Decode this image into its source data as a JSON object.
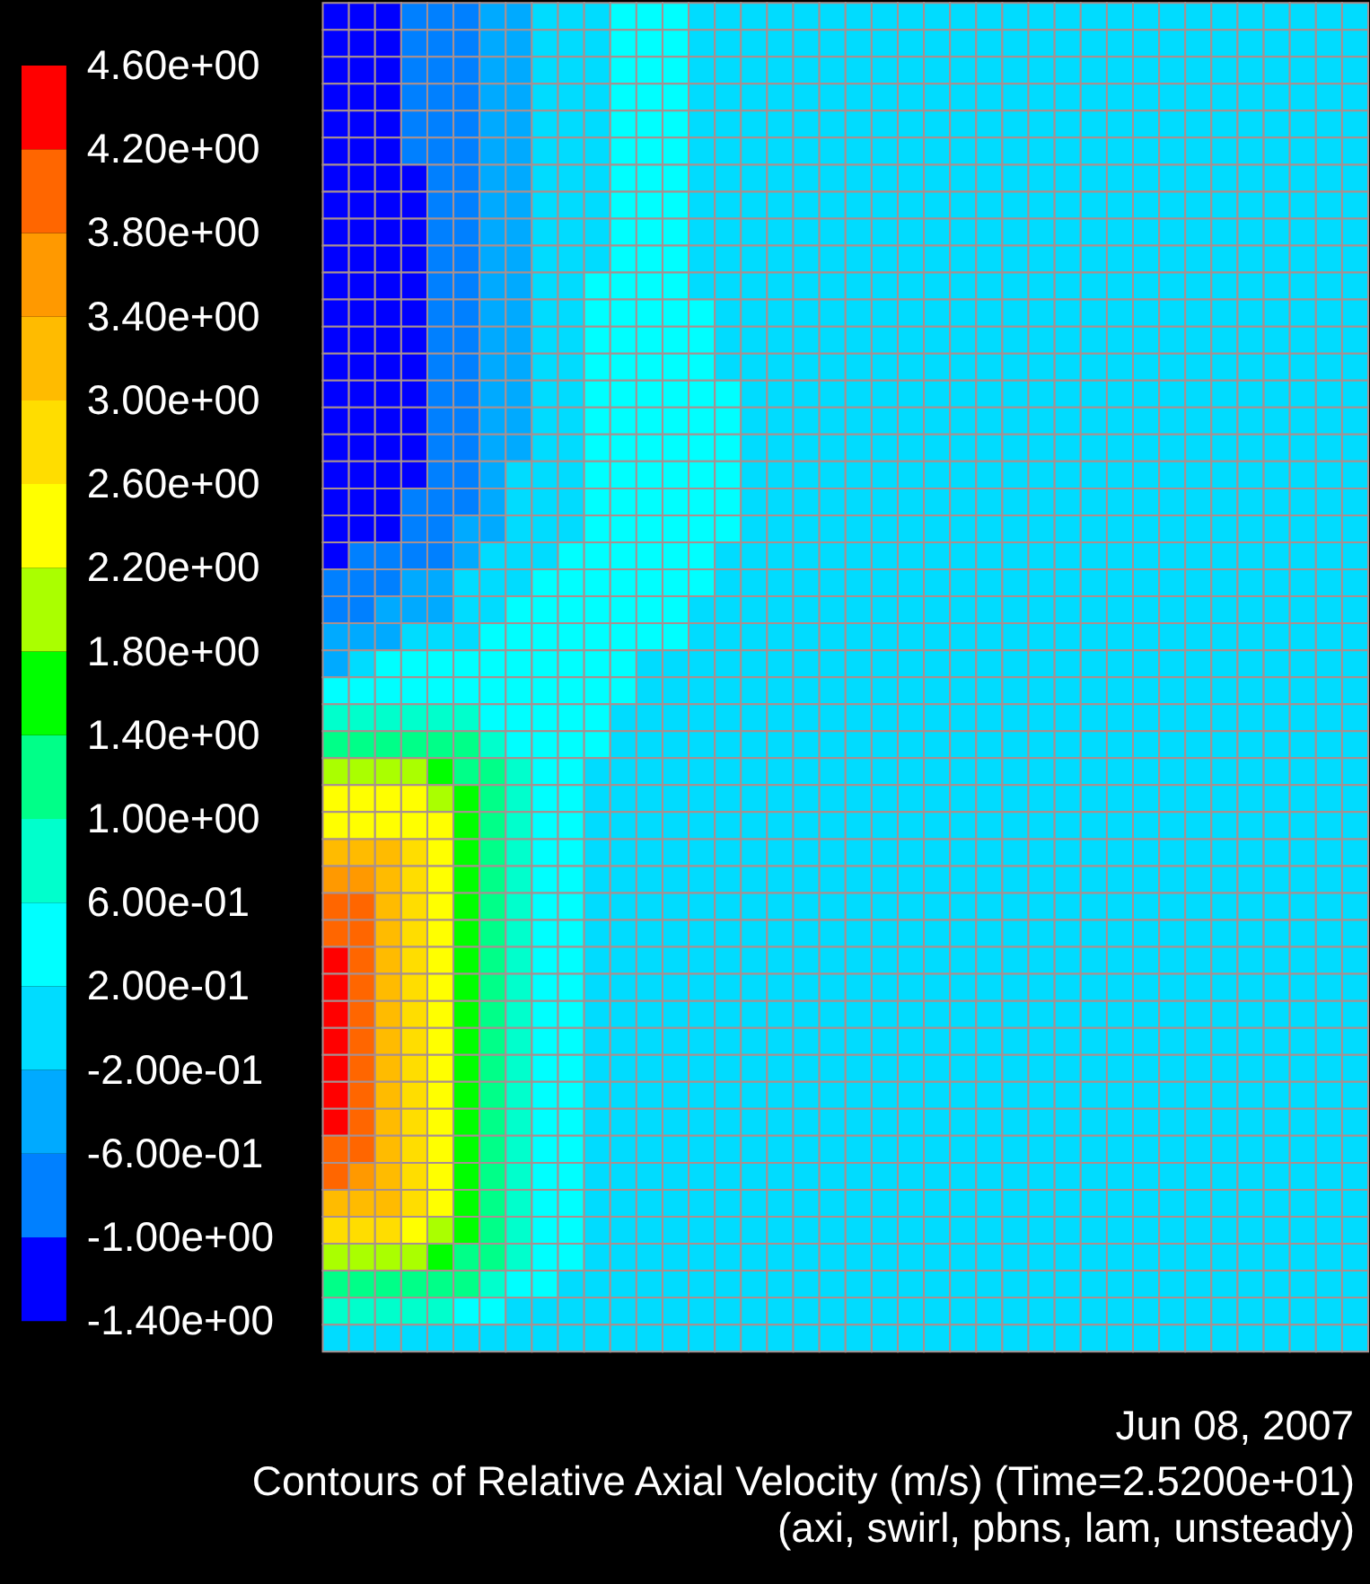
{
  "chart_data": {
    "type": "heatmap",
    "title": "Contours of Relative Axial Velocity (m/s)  (Time=2.5200e+01)",
    "subtitle": "(axi, swirl, pbns, lam, unsteady)",
    "annotations": [
      "Jun 08, 2007"
    ],
    "categories": [
      null,
      null,
      null,
      null,
      null,
      null,
      null,
      null,
      null,
      null,
      null,
      null,
      null,
      null,
      null,
      null,
      null,
      null,
      null,
      null,
      null,
      null,
      null,
      null,
      null,
      null,
      null,
      null,
      null,
      null,
      null,
      null,
      null,
      null,
      null,
      null,
      null,
      null,
      null,
      null
    ],
    "y_categories": [
      null,
      null,
      null,
      null,
      null,
      null,
      null,
      null,
      null,
      null,
      null,
      null,
      null,
      null,
      null,
      null,
      null,
      null,
      null,
      null,
      null,
      null,
      null,
      null,
      null,
      null,
      null,
      null,
      null,
      null,
      null,
      null,
      null,
      null,
      null,
      null,
      null,
      null,
      null,
      null,
      null,
      null,
      null,
      null,
      null,
      null,
      null,
      null,
      null,
      null
    ],
    "cells": [
      [
        -1.2,
        -1.2,
        -1.2,
        -0.8,
        -0.8,
        -0.8,
        -0.4,
        -0.4,
        0,
        0,
        0,
        0.4,
        0.4,
        0.4,
        0,
        0,
        0,
        0,
        0,
        0,
        0,
        0,
        0,
        0,
        0,
        0,
        0,
        0,
        0,
        0,
        0,
        0,
        0,
        0,
        0,
        0,
        0,
        0,
        0,
        0
      ],
      [
        -1.2,
        -1.2,
        -1.2,
        -0.8,
        -0.8,
        -0.8,
        -0.4,
        -0.4,
        0,
        0,
        0,
        0.4,
        0.4,
        0.4,
        0,
        0,
        0,
        0,
        0,
        0,
        0,
        0,
        0,
        0,
        0,
        0,
        0,
        0,
        0,
        0,
        0,
        0,
        0,
        0,
        0,
        0,
        0,
        0,
        0,
        0
      ],
      [
        -1.2,
        -1.2,
        -1.2,
        -0.8,
        -0.8,
        -0.8,
        -0.4,
        -0.4,
        0,
        0,
        0,
        0.4,
        0.4,
        0.4,
        0,
        0,
        0,
        0,
        0,
        0,
        0,
        0,
        0,
        0,
        0,
        0,
        0,
        0,
        0,
        0,
        0,
        0,
        0,
        0,
        0,
        0,
        0,
        0,
        0,
        0
      ],
      [
        -1.2,
        -1.2,
        -1.2,
        -0.8,
        -0.8,
        -0.8,
        -0.4,
        -0.4,
        0,
        0,
        0,
        0.4,
        0.4,
        0.4,
        0,
        0,
        0,
        0,
        0,
        0,
        0,
        0,
        0,
        0,
        0,
        0,
        0,
        0,
        0,
        0,
        0,
        0,
        0,
        0,
        0,
        0,
        0,
        0,
        0,
        0
      ],
      [
        -1.2,
        -1.2,
        -1.2,
        -0.8,
        -0.8,
        -0.8,
        -0.4,
        -0.4,
        0,
        0,
        0,
        0.4,
        0.4,
        0.4,
        0,
        0,
        0,
        0,
        0,
        0,
        0,
        0,
        0,
        0,
        0,
        0,
        0,
        0,
        0,
        0,
        0,
        0,
        0,
        0,
        0,
        0,
        0,
        0,
        0,
        0
      ],
      [
        -1.2,
        -1.2,
        -1.2,
        -0.8,
        -0.8,
        -0.8,
        -0.4,
        -0.4,
        0,
        0,
        0,
        0.4,
        0.4,
        0.4,
        0,
        0,
        0,
        0,
        0,
        0,
        0,
        0,
        0,
        0,
        0,
        0,
        0,
        0,
        0,
        0,
        0,
        0,
        0,
        0,
        0,
        0,
        0,
        0,
        0,
        0
      ],
      [
        -1.2,
        -1.2,
        -1.2,
        -1.2,
        -0.8,
        -0.8,
        -0.4,
        -0.4,
        0,
        0,
        0,
        0.4,
        0.4,
        0.4,
        0,
        0,
        0,
        0,
        0,
        0,
        0,
        0,
        0,
        0,
        0,
        0,
        0,
        0,
        0,
        0,
        0,
        0,
        0,
        0,
        0,
        0,
        0,
        0,
        0,
        0
      ],
      [
        -1.2,
        -1.2,
        -1.2,
        -1.2,
        -0.8,
        -0.8,
        -0.4,
        -0.4,
        0,
        0,
        0,
        0.4,
        0.4,
        0.4,
        0,
        0,
        0,
        0,
        0,
        0,
        0,
        0,
        0,
        0,
        0,
        0,
        0,
        0,
        0,
        0,
        0,
        0,
        0,
        0,
        0,
        0,
        0,
        0,
        0,
        0
      ],
      [
        -1.2,
        -1.2,
        -1.2,
        -1.2,
        -0.8,
        -0.8,
        -0.4,
        -0.4,
        0,
        0,
        0,
        0.4,
        0.4,
        0.4,
        0,
        0,
        0,
        0,
        0,
        0,
        0,
        0,
        0,
        0,
        0,
        0,
        0,
        0,
        0,
        0,
        0,
        0,
        0,
        0,
        0,
        0,
        0,
        0,
        0,
        0
      ],
      [
        -1.2,
        -1.2,
        -1.2,
        -1.2,
        -0.8,
        -0.8,
        -0.4,
        -0.4,
        0,
        0,
        0,
        0.4,
        0.4,
        0.4,
        0,
        0,
        0,
        0,
        0,
        0,
        0,
        0,
        0,
        0,
        0,
        0,
        0,
        0,
        0,
        0,
        0,
        0,
        0,
        0,
        0,
        0,
        0,
        0,
        0,
        0
      ],
      [
        -1.2,
        -1.2,
        -1.2,
        -1.2,
        -0.8,
        -0.8,
        -0.4,
        -0.4,
        0,
        0,
        0.4,
        0.4,
        0.4,
        0.4,
        0,
        0,
        0,
        0,
        0,
        0,
        0,
        0,
        0,
        0,
        0,
        0,
        0,
        0,
        0,
        0,
        0,
        0,
        0,
        0,
        0,
        0,
        0,
        0,
        0,
        0
      ],
      [
        -1.2,
        -1.2,
        -1.2,
        -1.2,
        -0.8,
        -0.8,
        -0.4,
        -0.4,
        0,
        0,
        0.4,
        0.4,
        0.4,
        0.4,
        0.4,
        0,
        0,
        0,
        0,
        0,
        0,
        0,
        0,
        0,
        0,
        0,
        0,
        0,
        0,
        0,
        0,
        0,
        0,
        0,
        0,
        0,
        0,
        0,
        0,
        0
      ],
      [
        -1.2,
        -1.2,
        -1.2,
        -1.2,
        -0.8,
        -0.8,
        -0.4,
        -0.4,
        0,
        0,
        0.4,
        0.4,
        0.4,
        0.4,
        0.4,
        0,
        0,
        0,
        0,
        0,
        0,
        0,
        0,
        0,
        0,
        0,
        0,
        0,
        0,
        0,
        0,
        0,
        0,
        0,
        0,
        0,
        0,
        0,
        0,
        0
      ],
      [
        -1.2,
        -1.2,
        -1.2,
        -1.2,
        -0.8,
        -0.8,
        -0.4,
        -0.4,
        0,
        0,
        0.4,
        0.4,
        0.4,
        0.4,
        0.4,
        0,
        0,
        0,
        0,
        0,
        0,
        0,
        0,
        0,
        0,
        0,
        0,
        0,
        0,
        0,
        0,
        0,
        0,
        0,
        0,
        0,
        0,
        0,
        0,
        0
      ],
      [
        -1.2,
        -1.2,
        -1.2,
        -1.2,
        -0.8,
        -0.8,
        -0.4,
        -0.4,
        0,
        0,
        0.4,
        0.4,
        0.4,
        0.4,
        0.4,
        0.4,
        0,
        0,
        0,
        0,
        0,
        0,
        0,
        0,
        0,
        0,
        0,
        0,
        0,
        0,
        0,
        0,
        0,
        0,
        0,
        0,
        0,
        0,
        0,
        0
      ],
      [
        -1.2,
        -1.2,
        -1.2,
        -1.2,
        -0.8,
        -0.8,
        -0.4,
        -0.4,
        0,
        0,
        0.4,
        0.4,
        0.4,
        0.4,
        0.4,
        0.4,
        0,
        0,
        0,
        0,
        0,
        0,
        0,
        0,
        0,
        0,
        0,
        0,
        0,
        0,
        0,
        0,
        0,
        0,
        0,
        0,
        0,
        0,
        0,
        0
      ],
      [
        -1.2,
        -1.2,
        -1.2,
        -1.2,
        -0.8,
        -0.8,
        -0.4,
        -0.4,
        0,
        0,
        0.4,
        0.4,
        0.4,
        0.4,
        0.4,
        0.4,
        0,
        0,
        0,
        0,
        0,
        0,
        0,
        0,
        0,
        0,
        0,
        0,
        0,
        0,
        0,
        0,
        0,
        0,
        0,
        0,
        0,
        0,
        0,
        0
      ],
      [
        -1.2,
        -1.2,
        -1.2,
        -1.2,
        -0.8,
        -0.8,
        -0.4,
        0,
        0,
        0,
        0.4,
        0.4,
        0.4,
        0.4,
        0.4,
        0.4,
        0,
        0,
        0,
        0,
        0,
        0,
        0,
        0,
        0,
        0,
        0,
        0,
        0,
        0,
        0,
        0,
        0,
        0,
        0,
        0,
        0,
        0,
        0,
        0
      ],
      [
        -1.2,
        -1.2,
        -1.2,
        -0.8,
        -0.8,
        -0.8,
        -0.4,
        0,
        0,
        0,
        0.4,
        0.4,
        0.4,
        0.4,
        0.4,
        0.4,
        0,
        0,
        0,
        0,
        0,
        0,
        0,
        0,
        0,
        0,
        0,
        0,
        0,
        0,
        0,
        0,
        0,
        0,
        0,
        0,
        0,
        0,
        0,
        0
      ],
      [
        -1.2,
        -1.2,
        -1.2,
        -0.8,
        -0.8,
        -0.4,
        -0.4,
        0,
        0,
        0,
        0.4,
        0.4,
        0.4,
        0.4,
        0.4,
        0.4,
        0,
        0,
        0,
        0,
        0,
        0,
        0,
        0,
        0,
        0,
        0,
        0,
        0,
        0,
        0,
        0,
        0,
        0,
        0,
        0,
        0,
        0,
        0,
        0
      ],
      [
        -1.2,
        -0.8,
        -0.8,
        -0.8,
        -0.8,
        -0.4,
        0,
        0,
        0,
        0.4,
        0.4,
        0.4,
        0.4,
        0.4,
        0.4,
        0,
        0,
        0,
        0,
        0,
        0,
        0,
        0,
        0,
        0,
        0,
        0,
        0,
        0,
        0,
        0,
        0,
        0,
        0,
        0,
        0,
        0,
        0,
        0,
        0
      ],
      [
        -0.8,
        -0.8,
        -0.8,
        -0.4,
        -0.4,
        0,
        0,
        0,
        0.4,
        0.4,
        0.4,
        0.4,
        0.4,
        0.4,
        0.4,
        0,
        0,
        0,
        0,
        0,
        0,
        0,
        0,
        0,
        0,
        0,
        0,
        0,
        0,
        0,
        0,
        0,
        0,
        0,
        0,
        0,
        0,
        0,
        0,
        0
      ],
      [
        -0.8,
        -0.8,
        -0.4,
        -0.4,
        -0.4,
        0,
        0,
        0.4,
        0.4,
        0.4,
        0.4,
        0.4,
        0.4,
        0.4,
        0,
        0,
        0,
        0,
        0,
        0,
        0,
        0,
        0,
        0,
        0,
        0,
        0,
        0,
        0,
        0,
        0,
        0,
        0,
        0,
        0,
        0,
        0,
        0,
        0,
        0
      ],
      [
        -0.4,
        -0.4,
        -0.4,
        0,
        0,
        0,
        0.4,
        0.4,
        0.4,
        0.4,
        0.4,
        0.4,
        0.4,
        0.4,
        0,
        0,
        0,
        0,
        0,
        0,
        0,
        0,
        0,
        0,
        0,
        0,
        0,
        0,
        0,
        0,
        0,
        0,
        0,
        0,
        0,
        0,
        0,
        0,
        0,
        0
      ],
      [
        -0.4,
        0,
        0.4,
        0.4,
        0.4,
        0.4,
        0.4,
        0.4,
        0.4,
        0.4,
        0.4,
        0.4,
        0,
        0,
        0,
        0,
        0,
        0,
        0,
        0,
        0,
        0,
        0,
        0,
        0,
        0,
        0,
        0,
        0,
        0,
        0,
        0,
        0,
        0,
        0,
        0,
        0,
        0,
        0,
        0
      ],
      [
        0.4,
        0.4,
        0.4,
        0.4,
        0.4,
        0.4,
        0.4,
        0.4,
        0.4,
        0.4,
        0.4,
        0.4,
        0,
        0,
        0,
        0,
        0,
        0,
        0,
        0,
        0,
        0,
        0,
        0,
        0,
        0,
        0,
        0,
        0,
        0,
        0,
        0,
        0,
        0,
        0,
        0,
        0,
        0,
        0,
        0
      ],
      [
        0.8,
        0.8,
        0.8,
        0.8,
        0.8,
        0.8,
        0.4,
        0.4,
        0.4,
        0.4,
        0.4,
        0,
        0,
        0,
        0,
        0,
        0,
        0,
        0,
        0,
        0,
        0,
        0,
        0,
        0,
        0,
        0,
        0,
        0,
        0,
        0,
        0,
        0,
        0,
        0,
        0,
        0,
        0,
        0,
        0
      ],
      [
        1.2,
        1.2,
        1.2,
        1.2,
        1.2,
        1.2,
        0.8,
        0.4,
        0.4,
        0.4,
        0.4,
        0,
        0,
        0,
        0,
        0,
        0,
        0,
        0,
        0,
        0,
        0,
        0,
        0,
        0,
        0,
        0,
        0,
        0,
        0,
        0,
        0,
        0,
        0,
        0,
        0,
        0,
        0,
        0,
        0
      ],
      [
        2.0,
        2.0,
        2.0,
        2.0,
        1.6,
        1.2,
        1.2,
        0.8,
        0.4,
        0.4,
        0,
        0,
        0,
        0,
        0,
        0,
        0,
        0,
        0,
        0,
        0,
        0,
        0,
        0,
        0,
        0,
        0,
        0,
        0,
        0,
        0,
        0,
        0,
        0,
        0,
        0,
        0,
        0,
        0,
        0
      ],
      [
        2.4,
        2.4,
        2.4,
        2.4,
        2.0,
        1.6,
        1.2,
        0.8,
        0.4,
        0.4,
        0,
        0,
        0,
        0,
        0,
        0,
        0,
        0,
        0,
        0,
        0,
        0,
        0,
        0,
        0,
        0,
        0,
        0,
        0,
        0,
        0,
        0,
        0,
        0,
        0,
        0,
        0,
        0,
        0,
        0
      ],
      [
        2.4,
        2.4,
        2.4,
        2.4,
        2.4,
        1.6,
        1.2,
        0.8,
        0.4,
        0.4,
        0,
        0,
        0,
        0,
        0,
        0,
        0,
        0,
        0,
        0,
        0,
        0,
        0,
        0,
        0,
        0,
        0,
        0,
        0,
        0,
        0,
        0,
        0,
        0,
        0,
        0,
        0,
        0,
        0,
        0
      ],
      [
        3.2,
        3.2,
        3.2,
        2.8,
        2.4,
        1.6,
        1.2,
        0.8,
        0.4,
        0.4,
        0,
        0,
        0,
        0,
        0,
        0,
        0,
        0,
        0,
        0,
        0,
        0,
        0,
        0,
        0,
        0,
        0,
        0,
        0,
        0,
        0,
        0,
        0,
        0,
        0,
        0,
        0,
        0,
        0,
        0
      ],
      [
        3.6,
        3.6,
        3.2,
        2.8,
        2.4,
        1.6,
        1.2,
        0.8,
        0.4,
        0.4,
        0,
        0,
        0,
        0,
        0,
        0,
        0,
        0,
        0,
        0,
        0,
        0,
        0,
        0,
        0,
        0,
        0,
        0,
        0,
        0,
        0,
        0,
        0,
        0,
        0,
        0,
        0,
        0,
        0,
        0
      ],
      [
        4.0,
        4.0,
        3.2,
        2.8,
        2.4,
        1.6,
        1.2,
        0.8,
        0.4,
        0.4,
        0,
        0,
        0,
        0,
        0,
        0,
        0,
        0,
        0,
        0,
        0,
        0,
        0,
        0,
        0,
        0,
        0,
        0,
        0,
        0,
        0,
        0,
        0,
        0,
        0,
        0,
        0,
        0,
        0,
        0
      ],
      [
        4.0,
        4.0,
        3.2,
        2.8,
        2.4,
        1.6,
        1.2,
        0.8,
        0.4,
        0.4,
        0,
        0,
        0,
        0,
        0,
        0,
        0,
        0,
        0,
        0,
        0,
        0,
        0,
        0,
        0,
        0,
        0,
        0,
        0,
        0,
        0,
        0,
        0,
        0,
        0,
        0,
        0,
        0,
        0,
        0
      ],
      [
        4.4,
        4.0,
        3.2,
        2.8,
        2.4,
        1.6,
        1.2,
        0.8,
        0.4,
        0.4,
        0,
        0,
        0,
        0,
        0,
        0,
        0,
        0,
        0,
        0,
        0,
        0,
        0,
        0,
        0,
        0,
        0,
        0,
        0,
        0,
        0,
        0,
        0,
        0,
        0,
        0,
        0,
        0,
        0,
        0
      ],
      [
        4.4,
        4.0,
        3.2,
        2.8,
        2.4,
        1.6,
        1.2,
        0.8,
        0.4,
        0.4,
        0,
        0,
        0,
        0,
        0,
        0,
        0,
        0,
        0,
        0,
        0,
        0,
        0,
        0,
        0,
        0,
        0,
        0,
        0,
        0,
        0,
        0,
        0,
        0,
        0,
        0,
        0,
        0,
        0,
        0
      ],
      [
        4.4,
        4.0,
        3.2,
        2.8,
        2.4,
        1.6,
        1.2,
        0.8,
        0.4,
        0.4,
        0,
        0,
        0,
        0,
        0,
        0,
        0,
        0,
        0,
        0,
        0,
        0,
        0,
        0,
        0,
        0,
        0,
        0,
        0,
        0,
        0,
        0,
        0,
        0,
        0,
        0,
        0,
        0,
        0,
        0
      ],
      [
        4.4,
        4.0,
        3.2,
        2.8,
        2.4,
        1.6,
        1.2,
        0.8,
        0.4,
        0.4,
        0,
        0,
        0,
        0,
        0,
        0,
        0,
        0,
        0,
        0,
        0,
        0,
        0,
        0,
        0,
        0,
        0,
        0,
        0,
        0,
        0,
        0,
        0,
        0,
        0,
        0,
        0,
        0,
        0,
        0
      ],
      [
        4.4,
        4.0,
        3.2,
        2.8,
        2.4,
        1.6,
        1.2,
        0.8,
        0.4,
        0.4,
        0,
        0,
        0,
        0,
        0,
        0,
        0,
        0,
        0,
        0,
        0,
        0,
        0,
        0,
        0,
        0,
        0,
        0,
        0,
        0,
        0,
        0,
        0,
        0,
        0,
        0,
        0,
        0,
        0,
        0
      ],
      [
        4.4,
        4.0,
        3.2,
        2.8,
        2.4,
        1.6,
        1.2,
        0.8,
        0.4,
        0.4,
        0,
        0,
        0,
        0,
        0,
        0,
        0,
        0,
        0,
        0,
        0,
        0,
        0,
        0,
        0,
        0,
        0,
        0,
        0,
        0,
        0,
        0,
        0,
        0,
        0,
        0,
        0,
        0,
        0,
        0
      ],
      [
        4.4,
        4.0,
        3.2,
        2.8,
        2.4,
        1.6,
        1.2,
        0.8,
        0.4,
        0.4,
        0,
        0,
        0,
        0,
        0,
        0,
        0,
        0,
        0,
        0,
        0,
        0,
        0,
        0,
        0,
        0,
        0,
        0,
        0,
        0,
        0,
        0,
        0,
        0,
        0,
        0,
        0,
        0,
        0,
        0
      ],
      [
        4.0,
        4.0,
        3.2,
        2.8,
        2.4,
        1.6,
        1.2,
        0.8,
        0.4,
        0.4,
        0,
        0,
        0,
        0,
        0,
        0,
        0,
        0,
        0,
        0,
        0,
        0,
        0,
        0,
        0,
        0,
        0,
        0,
        0,
        0,
        0,
        0,
        0,
        0,
        0,
        0,
        0,
        0,
        0,
        0
      ],
      [
        4.0,
        3.6,
        3.2,
        2.8,
        2.4,
        1.6,
        1.2,
        0.8,
        0.4,
        0.4,
        0,
        0,
        0,
        0,
        0,
        0,
        0,
        0,
        0,
        0,
        0,
        0,
        0,
        0,
        0,
        0,
        0,
        0,
        0,
        0,
        0,
        0,
        0,
        0,
        0,
        0,
        0,
        0,
        0,
        0
      ],
      [
        3.2,
        3.2,
        3.2,
        2.8,
        2.4,
        1.6,
        1.2,
        0.8,
        0.4,
        0.4,
        0,
        0,
        0,
        0,
        0,
        0,
        0,
        0,
        0,
        0,
        0,
        0,
        0,
        0,
        0,
        0,
        0,
        0,
        0,
        0,
        0,
        0,
        0,
        0,
        0,
        0,
        0,
        0,
        0,
        0
      ],
      [
        2.8,
        2.8,
        2.8,
        2.4,
        2.0,
        1.6,
        1.2,
        0.8,
        0.4,
        0.4,
        0,
        0,
        0,
        0,
        0,
        0,
        0,
        0,
        0,
        0,
        0,
        0,
        0,
        0,
        0,
        0,
        0,
        0,
        0,
        0,
        0,
        0,
        0,
        0,
        0,
        0,
        0,
        0,
        0,
        0
      ],
      [
        2.0,
        2.0,
        2.0,
        2.0,
        1.6,
        1.2,
        1.2,
        0.8,
        0.4,
        0.4,
        0,
        0,
        0,
        0,
        0,
        0,
        0,
        0,
        0,
        0,
        0,
        0,
        0,
        0,
        0,
        0,
        0,
        0,
        0,
        0,
        0,
        0,
        0,
        0,
        0,
        0,
        0,
        0,
        0,
        0
      ],
      [
        1.2,
        1.2,
        1.2,
        1.2,
        1.2,
        1.2,
        0.8,
        0.4,
        0.4,
        0,
        0,
        0,
        0,
        0,
        0,
        0,
        0,
        0,
        0,
        0,
        0,
        0,
        0,
        0,
        0,
        0,
        0,
        0,
        0,
        0,
        0,
        0,
        0,
        0,
        0,
        0,
        0,
        0,
        0,
        0
      ],
      [
        0.8,
        0.8,
        0.8,
        0.8,
        0.8,
        0.4,
        0.4,
        0,
        0,
        0,
        0,
        0,
        0,
        0,
        0,
        0,
        0,
        0,
        0,
        0,
        0,
        0,
        0,
        0,
        0,
        0,
        0,
        0,
        0,
        0,
        0,
        0,
        0,
        0,
        0,
        0,
        0,
        0,
        0,
        0
      ],
      [
        0,
        0,
        0,
        0,
        0,
        0,
        0,
        0,
        0,
        0,
        0,
        0,
        0,
        0,
        0,
        0,
        0,
        0,
        0,
        0,
        0,
        0,
        0,
        0,
        0,
        0,
        0,
        0,
        0,
        0,
        0,
        0,
        0,
        0,
        0,
        0,
        0,
        0,
        0,
        0
      ]
    ],
    "clim": [
      -1.4,
      4.6
    ],
    "cticks": [
      {
        "value": -1.4,
        "label": "-1.40e+00"
      },
      {
        "value": -1.0,
        "label": "-1.00e+00"
      },
      {
        "value": -0.6,
        "label": "-6.00e-01"
      },
      {
        "value": -0.2,
        "label": "-2.00e-01"
      },
      {
        "value": 0.2,
        "label": "2.00e-01"
      },
      {
        "value": 0.6,
        "label": "6.00e-01"
      },
      {
        "value": 1.0,
        "label": "1.00e+00"
      },
      {
        "value": 1.4,
        "label": "1.40e+00"
      },
      {
        "value": 1.8,
        "label": "1.80e+00"
      },
      {
        "value": 2.2,
        "label": "2.20e+00"
      },
      {
        "value": 2.6,
        "label": "2.60e+00"
      },
      {
        "value": 3.0,
        "label": "3.00e+00"
      },
      {
        "value": 3.4,
        "label": "3.40e+00"
      },
      {
        "value": 3.8,
        "label": "3.80e+00"
      },
      {
        "value": 4.2,
        "label": "4.20e+00"
      },
      {
        "value": 4.6,
        "label": "4.60e+00"
      }
    ],
    "colors": [
      "#0000ff",
      "#0080ff",
      "#00aaff",
      "#00dcff",
      "#00ffff",
      "#00ffcc",
      "#00ff88",
      "#00ff00",
      "#aaff00",
      "#ffff00",
      "#ffdd00",
      "#ffbb00",
      "#ff9900",
      "#ff6600",
      "#ff0000"
    ]
  }
}
